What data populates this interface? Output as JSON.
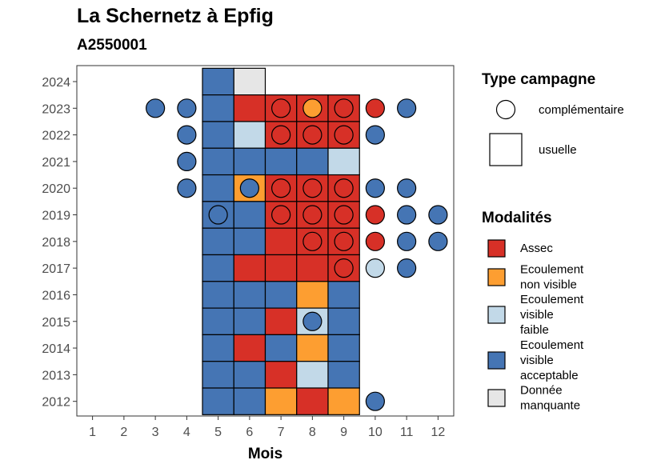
{
  "chart_data": {
    "type": "heatmap",
    "title": "La Schernetz à Epfig",
    "subtitle": "A2550001",
    "xlabel": "Mois",
    "ylabel": "",
    "x_ticks": [
      1,
      2,
      3,
      4,
      5,
      6,
      7,
      8,
      9,
      10,
      11,
      12
    ],
    "y_ticks": [
      2012,
      2013,
      2014,
      2015,
      2016,
      2017,
      2018,
      2019,
      2020,
      2021,
      2022,
      2023,
      2024
    ],
    "xlim": [
      0.5,
      12.5
    ],
    "ylim": [
      2011.45,
      2024.6
    ],
    "grid": false,
    "colors": {
      "Assec": "#d73027",
      "Ecoulement non visible": "#fd9e31",
      "Ecoulement visible faible": "#c2d9e8",
      "Ecoulement visible acceptable": "#4575b4",
      "Donnée manquante": "#e6e6e6"
    },
    "legend_type": {
      "title": "Type campagne",
      "items": [
        {
          "shape": "circle",
          "label": "complémentaire"
        },
        {
          "shape": "square",
          "label": "usuelle"
        }
      ]
    },
    "legend_mod": {
      "title": "Modalités",
      "items": [
        {
          "key": "Assec",
          "lines": [
            "Assec"
          ]
        },
        {
          "key": "Ecoulement non visible",
          "lines": [
            "Ecoulement",
            "non visible"
          ]
        },
        {
          "key": "Ecoulement visible faible",
          "lines": [
            "Ecoulement",
            "visible",
            "faible"
          ]
        },
        {
          "key": "Ecoulement visible acceptable",
          "lines": [
            "Ecoulement",
            "visible",
            "acceptable"
          ]
        },
        {
          "key": "Donnée manquante",
          "lines": [
            "Donnée",
            "manquante"
          ]
        }
      ]
    },
    "squares": [
      {
        "year": 2024,
        "month": 5,
        "m": "Ecoulement visible acceptable"
      },
      {
        "year": 2024,
        "month": 6,
        "m": "Donnée manquante"
      },
      {
        "year": 2023,
        "month": 5,
        "m": "Ecoulement visible acceptable"
      },
      {
        "year": 2023,
        "month": 6,
        "m": "Assec"
      },
      {
        "year": 2023,
        "month": 7,
        "m": "Assec"
      },
      {
        "year": 2023,
        "month": 8,
        "m": "Assec"
      },
      {
        "year": 2023,
        "month": 9,
        "m": "Assec"
      },
      {
        "year": 2022,
        "month": 5,
        "m": "Ecoulement visible acceptable"
      },
      {
        "year": 2022,
        "month": 6,
        "m": "Ecoulement visible faible"
      },
      {
        "year": 2022,
        "month": 7,
        "m": "Assec"
      },
      {
        "year": 2022,
        "month": 8,
        "m": "Assec"
      },
      {
        "year": 2022,
        "month": 9,
        "m": "Assec"
      },
      {
        "year": 2021,
        "month": 5,
        "m": "Ecoulement visible acceptable"
      },
      {
        "year": 2021,
        "month": 6,
        "m": "Ecoulement visible acceptable"
      },
      {
        "year": 2021,
        "month": 7,
        "m": "Ecoulement visible acceptable"
      },
      {
        "year": 2021,
        "month": 8,
        "m": "Ecoulement visible acceptable"
      },
      {
        "year": 2021,
        "month": 9,
        "m": "Ecoulement visible faible"
      },
      {
        "year": 2020,
        "month": 5,
        "m": "Ecoulement visible acceptable"
      },
      {
        "year": 2020,
        "month": 6,
        "m": "Ecoulement non visible"
      },
      {
        "year": 2020,
        "month": 7,
        "m": "Assec"
      },
      {
        "year": 2020,
        "month": 8,
        "m": "Assec"
      },
      {
        "year": 2020,
        "month": 9,
        "m": "Assec"
      },
      {
        "year": 2019,
        "month": 5,
        "m": "Ecoulement visible acceptable"
      },
      {
        "year": 2019,
        "month": 6,
        "m": "Ecoulement visible acceptable"
      },
      {
        "year": 2019,
        "month": 7,
        "m": "Assec"
      },
      {
        "year": 2019,
        "month": 8,
        "m": "Assec"
      },
      {
        "year": 2019,
        "month": 9,
        "m": "Assec"
      },
      {
        "year": 2018,
        "month": 5,
        "m": "Ecoulement visible acceptable"
      },
      {
        "year": 2018,
        "month": 6,
        "m": "Ecoulement visible acceptable"
      },
      {
        "year": 2018,
        "month": 7,
        "m": "Assec"
      },
      {
        "year": 2018,
        "month": 8,
        "m": "Assec"
      },
      {
        "year": 2018,
        "month": 9,
        "m": "Assec"
      },
      {
        "year": 2017,
        "month": 5,
        "m": "Ecoulement visible acceptable"
      },
      {
        "year": 2017,
        "month": 6,
        "m": "Assec"
      },
      {
        "year": 2017,
        "month": 7,
        "m": "Assec"
      },
      {
        "year": 2017,
        "month": 8,
        "m": "Assec"
      },
      {
        "year": 2017,
        "month": 9,
        "m": "Assec"
      },
      {
        "year": 2016,
        "month": 5,
        "m": "Ecoulement visible acceptable"
      },
      {
        "year": 2016,
        "month": 6,
        "m": "Ecoulement visible acceptable"
      },
      {
        "year": 2016,
        "month": 7,
        "m": "Ecoulement visible acceptable"
      },
      {
        "year": 2016,
        "month": 8,
        "m": "Ecoulement non visible"
      },
      {
        "year": 2016,
        "month": 9,
        "m": "Ecoulement visible acceptable"
      },
      {
        "year": 2015,
        "month": 5,
        "m": "Ecoulement visible acceptable"
      },
      {
        "year": 2015,
        "month": 6,
        "m": "Ecoulement visible acceptable"
      },
      {
        "year": 2015,
        "month": 7,
        "m": "Assec"
      },
      {
        "year": 2015,
        "month": 8,
        "m": "Ecoulement visible faible"
      },
      {
        "year": 2015,
        "month": 9,
        "m": "Ecoulement visible acceptable"
      },
      {
        "year": 2014,
        "month": 5,
        "m": "Ecoulement visible acceptable"
      },
      {
        "year": 2014,
        "month": 6,
        "m": "Assec"
      },
      {
        "year": 2014,
        "month": 7,
        "m": "Ecoulement visible acceptable"
      },
      {
        "year": 2014,
        "month": 8,
        "m": "Ecoulement non visible"
      },
      {
        "year": 2014,
        "month": 9,
        "m": "Ecoulement visible acceptable"
      },
      {
        "year": 2013,
        "month": 5,
        "m": "Ecoulement visible acceptable"
      },
      {
        "year": 2013,
        "month": 6,
        "m": "Ecoulement visible acceptable"
      },
      {
        "year": 2013,
        "month": 7,
        "m": "Assec"
      },
      {
        "year": 2013,
        "month": 8,
        "m": "Ecoulement visible faible"
      },
      {
        "year": 2013,
        "month": 9,
        "m": "Ecoulement visible acceptable"
      },
      {
        "year": 2012,
        "month": 5,
        "m": "Ecoulement visible acceptable"
      },
      {
        "year": 2012,
        "month": 6,
        "m": "Ecoulement visible acceptable"
      },
      {
        "year": 2012,
        "month": 7,
        "m": "Ecoulement non visible"
      },
      {
        "year": 2012,
        "month": 8,
        "m": "Assec"
      },
      {
        "year": 2012,
        "month": 9,
        "m": "Ecoulement non visible"
      }
    ],
    "circles": [
      {
        "year": 2023,
        "month": 3,
        "m": "Ecoulement visible acceptable"
      },
      {
        "year": 2023,
        "month": 4,
        "m": "Ecoulement visible acceptable"
      },
      {
        "year": 2023,
        "month": 7,
        "m": "Assec"
      },
      {
        "year": 2023,
        "month": 8,
        "m": "Ecoulement non visible"
      },
      {
        "year": 2023,
        "month": 9,
        "m": "Assec"
      },
      {
        "year": 2023,
        "month": 10,
        "m": "Assec"
      },
      {
        "year": 2023,
        "month": 11,
        "m": "Ecoulement visible acceptable"
      },
      {
        "year": 2022,
        "month": 4,
        "m": "Ecoulement visible acceptable"
      },
      {
        "year": 2022,
        "month": 7,
        "m": "Assec"
      },
      {
        "year": 2022,
        "month": 8,
        "m": "Assec"
      },
      {
        "year": 2022,
        "month": 9,
        "m": "Assec"
      },
      {
        "year": 2022,
        "month": 10,
        "m": "Ecoulement visible acceptable"
      },
      {
        "year": 2021,
        "month": 4,
        "m": "Ecoulement visible acceptable"
      },
      {
        "year": 2020,
        "month": 4,
        "m": "Ecoulement visible acceptable"
      },
      {
        "year": 2020,
        "month": 6,
        "m": "Ecoulement visible acceptable"
      },
      {
        "year": 2020,
        "month": 7,
        "m": "Assec"
      },
      {
        "year": 2020,
        "month": 8,
        "m": "Assec"
      },
      {
        "year": 2020,
        "month": 9,
        "m": "Assec"
      },
      {
        "year": 2020,
        "month": 10,
        "m": "Ecoulement visible acceptable"
      },
      {
        "year": 2020,
        "month": 11,
        "m": "Ecoulement visible acceptable"
      },
      {
        "year": 2019,
        "month": 5,
        "m": "Ecoulement visible acceptable"
      },
      {
        "year": 2019,
        "month": 7,
        "m": "Assec"
      },
      {
        "year": 2019,
        "month": 8,
        "m": "Assec"
      },
      {
        "year": 2019,
        "month": 9,
        "m": "Assec"
      },
      {
        "year": 2019,
        "month": 10,
        "m": "Assec"
      },
      {
        "year": 2019,
        "month": 11,
        "m": "Ecoulement visible acceptable"
      },
      {
        "year": 2019,
        "month": 12,
        "m": "Ecoulement visible acceptable"
      },
      {
        "year": 2018,
        "month": 8,
        "m": "Assec"
      },
      {
        "year": 2018,
        "month": 9,
        "m": "Assec"
      },
      {
        "year": 2018,
        "month": 10,
        "m": "Assec"
      },
      {
        "year": 2018,
        "month": 11,
        "m": "Ecoulement visible acceptable"
      },
      {
        "year": 2018,
        "month": 12,
        "m": "Ecoulement visible acceptable"
      },
      {
        "year": 2017,
        "month": 9,
        "m": "Assec"
      },
      {
        "year": 2017,
        "month": 10,
        "m": "Ecoulement visible faible"
      },
      {
        "year": 2017,
        "month": 11,
        "m": "Ecoulement visible acceptable"
      },
      {
        "year": 2015,
        "month": 8,
        "m": "Ecoulement visible acceptable"
      },
      {
        "year": 2012,
        "month": 10,
        "m": "Ecoulement visible acceptable"
      }
    ]
  }
}
